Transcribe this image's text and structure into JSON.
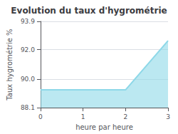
{
  "chart_data": {
    "type": "area",
    "title": "Evolution du taux d'hygrométrie",
    "xlabel": "heure par heure",
    "ylabel": "Taux hygrométrie %",
    "x": [
      0,
      2,
      3
    ],
    "values": [
      89.3,
      89.3,
      92.6
    ],
    "color": "#8dd8e8",
    "xlim": [
      0,
      3
    ],
    "xticks": [
      0,
      1,
      2,
      3
    ],
    "ylim": [
      88.1,
      93.9
    ],
    "yticks": [
      88.1,
      {
        "value": 90.0,
        "label": "90.0"
      },
      {
        "value": 92.0,
        "label": "92.0"
      },
      93.9
    ],
    "grid": true
  }
}
